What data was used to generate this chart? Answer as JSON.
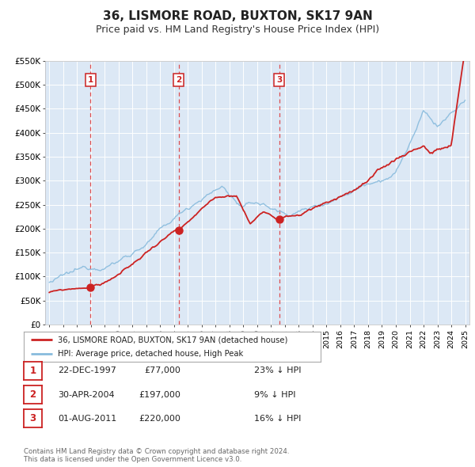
{
  "title": "36, LISMORE ROAD, BUXTON, SK17 9AN",
  "subtitle": "Price paid vs. HM Land Registry's House Price Index (HPI)",
  "title_fontsize": 11,
  "subtitle_fontsize": 9,
  "background_color": "#ffffff",
  "plot_bg_color": "#dce8f5",
  "grid_color": "#ffffff",
  "ylim": [
    0,
    550000
  ],
  "yticks": [
    0,
    50000,
    100000,
    150000,
    200000,
    250000,
    300000,
    350000,
    400000,
    450000,
    500000,
    550000
  ],
  "ytick_labels": [
    "£0",
    "£50K",
    "£100K",
    "£150K",
    "£200K",
    "£250K",
    "£300K",
    "£350K",
    "£400K",
    "£450K",
    "£500K",
    "£550K"
  ],
  "sale_color": "#cc2222",
  "hpi_color": "#88bbdd",
  "sale_linewidth": 1.3,
  "hpi_linewidth": 1.0,
  "marker_color": "#cc2222",
  "vline_color": "#dd3333",
  "vline_style": "--",
  "label_color": "#cc2222",
  "legend_label_sale": "36, LISMORE ROAD, BUXTON, SK17 9AN (detached house)",
  "legend_label_hpi": "HPI: Average price, detached house, High Peak",
  "transactions": [
    {
      "date_year": 1997.97,
      "price": 77000,
      "label": "1"
    },
    {
      "date_year": 2004.33,
      "price": 197000,
      "label": "2"
    },
    {
      "date_year": 2011.58,
      "price": 220000,
      "label": "3"
    }
  ],
  "table_rows": [
    {
      "num": "1",
      "date": "22-DEC-1997",
      "price": "£77,000",
      "hpi": "23% ↓ HPI"
    },
    {
      "num": "2",
      "date": "30-APR-2004",
      "price": "£197,000",
      "hpi": "9% ↓ HPI"
    },
    {
      "num": "3",
      "date": "01-AUG-2011",
      "price": "£220,000",
      "hpi": "16% ↓ HPI"
    }
  ],
  "footer": "Contains HM Land Registry data © Crown copyright and database right 2024.\nThis data is licensed under the Open Government Licence v3.0.",
  "xtick_years": [
    1995,
    1996,
    1997,
    1998,
    1999,
    2000,
    2001,
    2002,
    2003,
    2004,
    2005,
    2006,
    2007,
    2008,
    2009,
    2010,
    2011,
    2012,
    2013,
    2014,
    2015,
    2016,
    2017,
    2018,
    2019,
    2020,
    2021,
    2022,
    2023,
    2024,
    2025
  ]
}
